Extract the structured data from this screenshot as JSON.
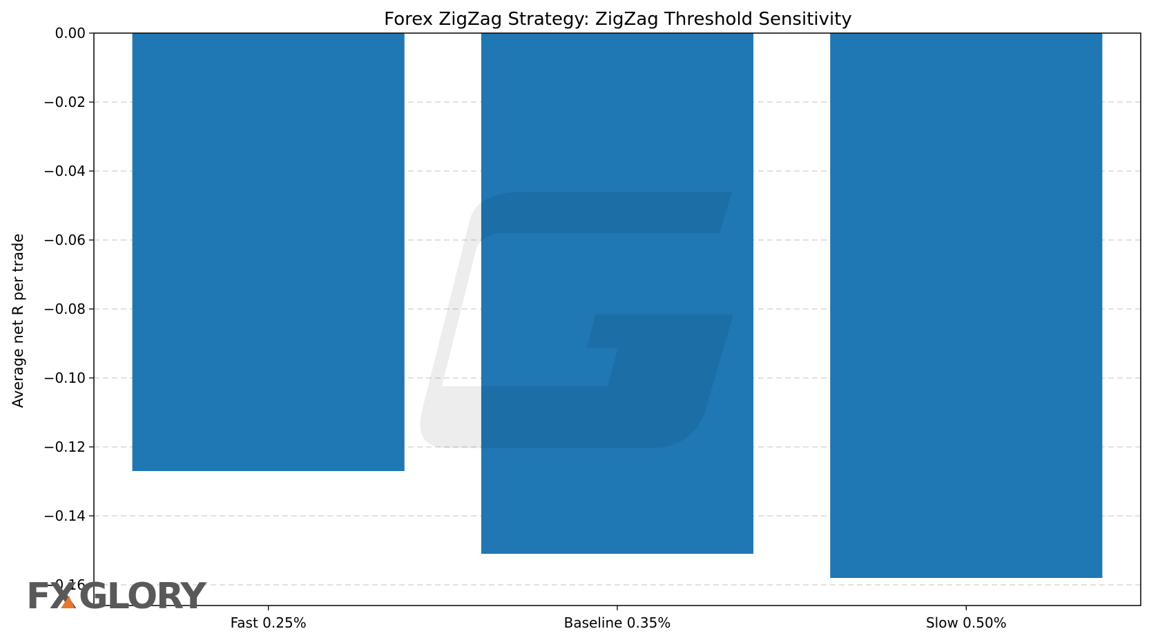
{
  "chart_data": {
    "type": "bar",
    "title": "Forex ZigZag Strategy: ZigZag Threshold Sensitivity",
    "xlabel": "",
    "ylabel": "Average net R per trade",
    "categories": [
      "Fast 0.25%",
      "Baseline 0.35%",
      "Slow 0.50%"
    ],
    "values": [
      -0.127,
      -0.151,
      -0.158
    ],
    "ylim": [
      -0.166,
      0.0
    ],
    "yticks": [
      0.0,
      -0.02,
      -0.04,
      -0.06,
      -0.08,
      -0.1,
      -0.12,
      -0.14,
      -0.16
    ],
    "ytick_labels": [
      "0.00",
      "−0.02",
      "−0.04",
      "−0.06",
      "−0.08",
      "−0.10",
      "−0.12",
      "−0.14",
      "−0.16"
    ],
    "grid": "y-dashed",
    "bar_color": "#1f77b4"
  },
  "watermark": {
    "logo_text_left": "FX",
    "logo_text_right": "GLORY",
    "accent_color": "#e8762b"
  }
}
